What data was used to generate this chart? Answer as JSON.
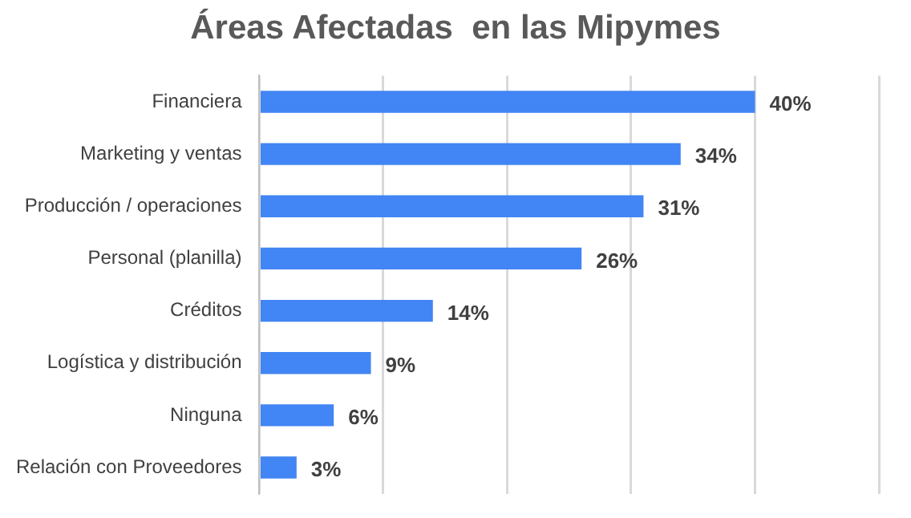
{
  "chart_data": {
    "type": "bar",
    "orientation": "horizontal",
    "title": "Áreas Afectadas  en las Mipymes",
    "categories": [
      "Financiera",
      "Marketing y ventas",
      "Producción / operaciones",
      "Personal (planilla)",
      "Créditos",
      "Logística y distribución",
      "Ninguna",
      "Relación con Proveedores"
    ],
    "values": [
      40,
      34,
      31,
      26,
      14,
      9,
      6,
      3
    ],
    "value_labels": [
      "40%",
      "34%",
      "31%",
      "26%",
      "14%",
      "9%",
      "6%",
      "3%"
    ],
    "color": "#4285f4",
    "xlim": [
      0,
      50
    ],
    "xticks": [
      {
        "value": 0,
        "label": null
      },
      {
        "value": 10,
        "label": null
      },
      {
        "value": 20,
        "label": null
      },
      {
        "value": 30,
        "label": null
      },
      {
        "value": 40,
        "label": null
      },
      {
        "value": 50,
        "label": null
      }
    ],
    "grid": "x",
    "tick_labels": "y",
    "legend": false
  }
}
